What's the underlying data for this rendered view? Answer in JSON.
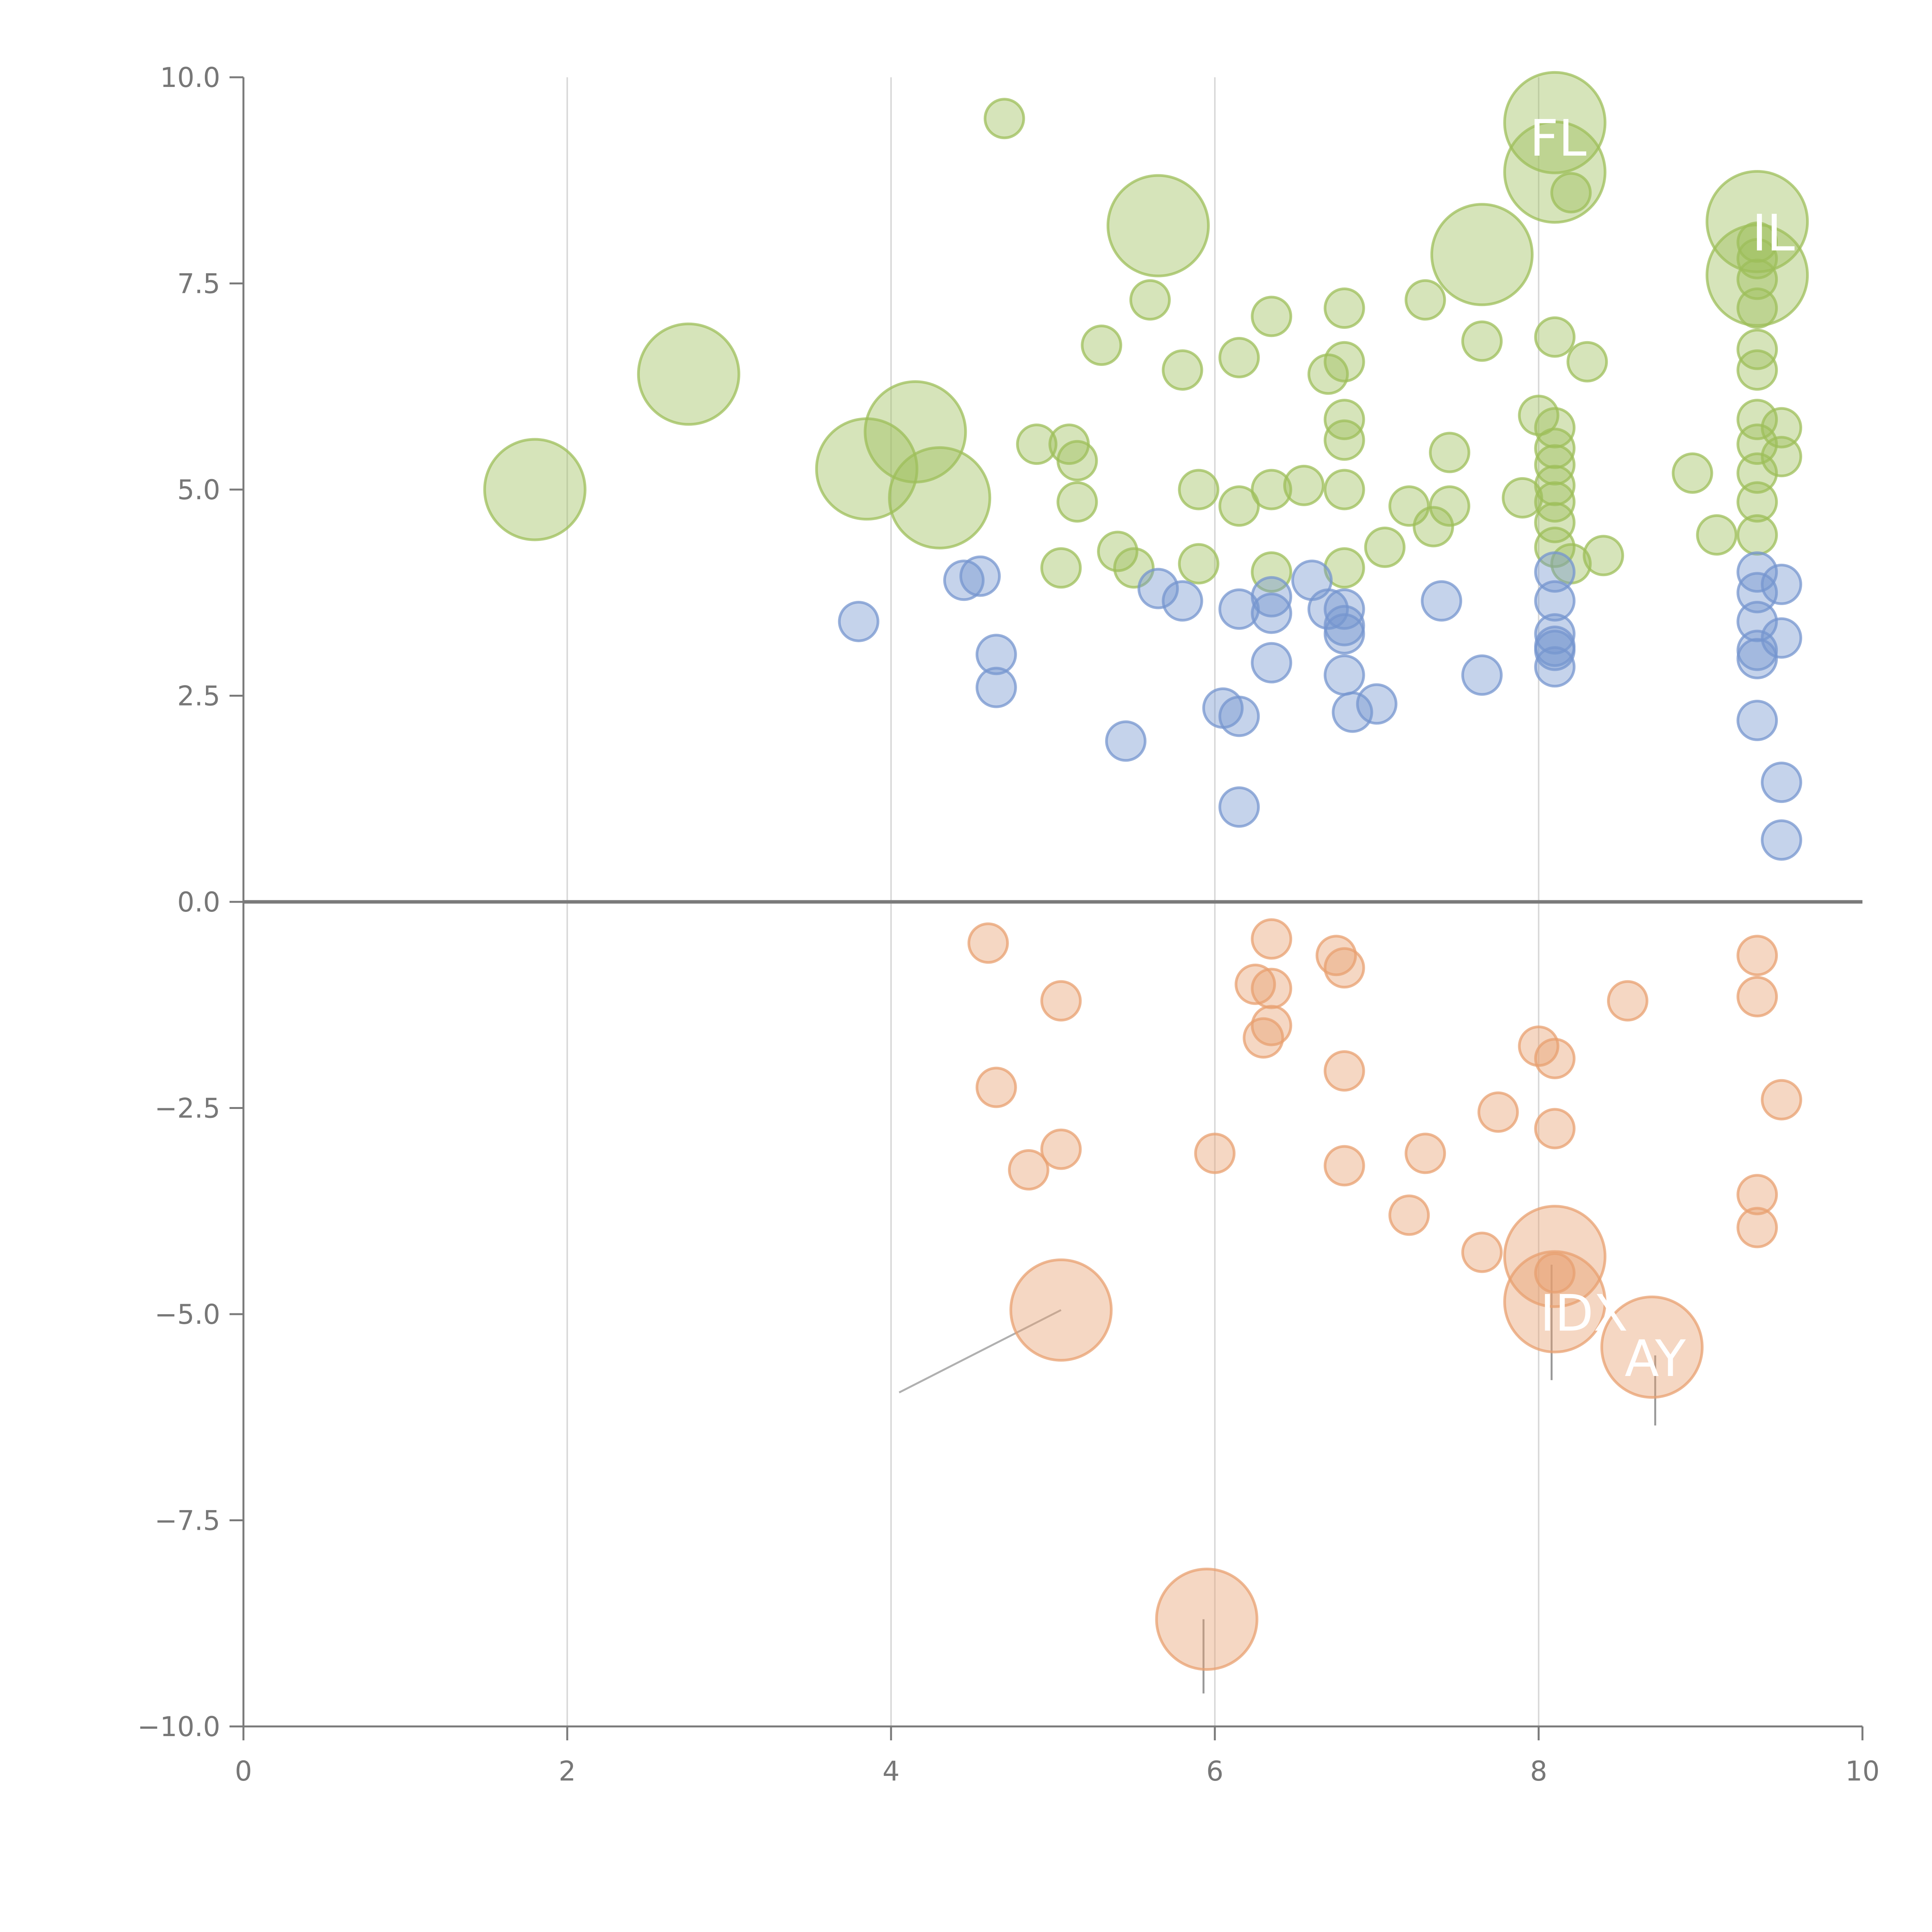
{
  "chart_data": {
    "type": "scatter",
    "title": "",
    "xlabel": "",
    "ylabel": "",
    "xlim": [
      0,
      10
    ],
    "ylim": [
      -10,
      10
    ],
    "x_ticks": [
      "0",
      "2",
      "4",
      "6",
      "8",
      "10"
    ],
    "y_ticks": [
      "10.0",
      "7.5",
      "5.0",
      "2.5",
      "0.0",
      "−2.5",
      "−5.0",
      "−7.5",
      "−10.0"
    ],
    "grid": "vertical",
    "series": [
      {
        "name": "green",
        "color": "#9dbf5a",
        "points": [
          [
            4.7,
            9.5,
            1
          ],
          [
            5.3,
            6.75,
            1
          ],
          [
            5.6,
            7.3,
            1
          ],
          [
            6.15,
            6.6,
            1
          ],
          [
            5.8,
            6.45,
            1
          ],
          [
            6.7,
            6.4,
            1
          ],
          [
            6.8,
            6.55,
            1
          ],
          [
            6.35,
            7.1,
            1
          ],
          [
            6.8,
            7.2,
            1
          ],
          [
            7.3,
            7.3,
            1
          ],
          [
            7.65,
            6.8,
            1
          ],
          [
            8.1,
            6.85,
            1
          ],
          [
            8.3,
            6.55,
            1
          ],
          [
            8.2,
            8.6,
            1
          ],
          [
            4.9,
            5.55,
            1
          ],
          [
            5.1,
            5.55,
            1
          ],
          [
            5.15,
            5.35,
            1
          ],
          [
            5.15,
            4.85,
            1
          ],
          [
            5.05,
            4.05,
            1
          ],
          [
            5.4,
            4.25,
            1
          ],
          [
            5.5,
            4.05,
            1
          ],
          [
            5.9,
            4.1,
            1
          ],
          [
            5.9,
            5.0,
            1
          ],
          [
            6.15,
            4.8,
            1
          ],
          [
            6.35,
            5.0,
            1
          ],
          [
            6.55,
            5.05,
            1
          ],
          [
            6.8,
            5.0,
            1
          ],
          [
            6.8,
            5.6,
            1
          ],
          [
            6.8,
            5.85,
            1
          ],
          [
            6.35,
            4.0,
            1
          ],
          [
            6.8,
            4.05,
            1
          ],
          [
            7.05,
            4.3,
            1
          ],
          [
            7.2,
            4.8,
            1
          ],
          [
            7.35,
            4.55,
            1
          ],
          [
            7.45,
            4.8,
            1
          ],
          [
            7.45,
            5.45,
            1
          ],
          [
            7.9,
            4.9,
            1
          ],
          [
            8.0,
            5.9,
            1
          ],
          [
            8.1,
            5.75,
            1
          ],
          [
            8.1,
            5.5,
            1
          ],
          [
            8.1,
            5.3,
            1
          ],
          [
            8.1,
            5.05,
            1
          ],
          [
            8.1,
            4.85,
            1
          ],
          [
            8.1,
            4.6,
            1
          ],
          [
            8.1,
            4.3,
            1
          ],
          [
            8.2,
            4.1,
            1
          ],
          [
            8.4,
            4.2,
            1
          ],
          [
            8.95,
            5.2,
            1
          ],
          [
            9.1,
            4.45,
            1
          ],
          [
            9.35,
            4.45,
            1
          ],
          [
            9.35,
            4.85,
            1
          ],
          [
            9.35,
            5.2,
            1
          ],
          [
            9.35,
            5.55,
            1
          ],
          [
            9.35,
            5.85,
            1
          ],
          [
            9.35,
            6.45,
            1
          ],
          [
            9.35,
            6.7,
            1
          ],
          [
            9.35,
            7.2,
            1
          ],
          [
            9.35,
            7.55,
            1
          ],
          [
            9.35,
            7.8,
            1
          ],
          [
            9.35,
            8.0,
            1
          ],
          [
            9.5,
            5.75,
            1
          ],
          [
            9.5,
            5.4,
            1
          ],
          [
            1.8,
            5.0,
            2.6
          ],
          [
            2.75,
            6.4,
            2.6
          ],
          [
            3.85,
            5.25,
            2.6
          ],
          [
            4.15,
            5.7,
            2.6
          ],
          [
            4.3,
            4.9,
            2.6
          ],
          [
            5.65,
            8.2,
            2.6
          ],
          [
            7.65,
            7.85,
            2.6
          ],
          [
            8.1,
            9.45,
            2.6
          ],
          [
            8.1,
            8.85,
            2.6
          ],
          [
            9.35,
            8.25,
            2.6
          ],
          [
            9.35,
            7.6,
            2.6
          ]
        ]
      },
      {
        "name": "blue",
        "color": "#7596cf",
        "points": [
          [
            3.8,
            3.4,
            1
          ],
          [
            4.45,
            3.9,
            1
          ],
          [
            4.55,
            3.95,
            1
          ],
          [
            4.65,
            3.0,
            1
          ],
          [
            4.65,
            2.6,
            1
          ],
          [
            5.45,
            1.95,
            1
          ],
          [
            5.65,
            3.8,
            1
          ],
          [
            5.8,
            3.65,
            1
          ],
          [
            6.05,
            2.35,
            1
          ],
          [
            6.15,
            2.25,
            1
          ],
          [
            6.15,
            3.55,
            1
          ],
          [
            6.15,
            1.15,
            1
          ],
          [
            6.35,
            3.7,
            1
          ],
          [
            6.35,
            3.5,
            1
          ],
          [
            6.35,
            2.9,
            1
          ],
          [
            6.6,
            3.9,
            1
          ],
          [
            6.7,
            3.55,
            1
          ],
          [
            6.8,
            3.55,
            1
          ],
          [
            6.8,
            3.35,
            1
          ],
          [
            6.8,
            3.25,
            1
          ],
          [
            6.8,
            2.75,
            1
          ],
          [
            6.85,
            2.3,
            1
          ],
          [
            7.0,
            2.4,
            1
          ],
          [
            7.4,
            3.65,
            1
          ],
          [
            7.65,
            2.75,
            1
          ],
          [
            8.1,
            4.0,
            1
          ],
          [
            8.1,
            3.65,
            1
          ],
          [
            8.1,
            3.25,
            1
          ],
          [
            8.1,
            3.1,
            1
          ],
          [
            8.1,
            3.05,
            1
          ],
          [
            8.1,
            2.85,
            1
          ],
          [
            9.35,
            4.0,
            1
          ],
          [
            9.35,
            3.75,
            1
          ],
          [
            9.35,
            3.4,
            1
          ],
          [
            9.35,
            3.05,
            1
          ],
          [
            9.35,
            2.95,
            1
          ],
          [
            9.35,
            2.2,
            1
          ],
          [
            9.5,
            3.85,
            1
          ],
          [
            9.5,
            3.2,
            1
          ],
          [
            9.5,
            1.45,
            1
          ],
          [
            9.5,
            0.75,
            1
          ]
        ]
      },
      {
        "name": "orange",
        "color": "#e8a070",
        "points": [
          [
            4.6,
            -0.5,
            1
          ],
          [
            5.05,
            -1.2,
            1
          ],
          [
            4.65,
            -2.25,
            1
          ],
          [
            4.85,
            -3.25,
            1
          ],
          [
            5.05,
            -3.0,
            1
          ],
          [
            6.0,
            -3.05,
            1
          ],
          [
            6.25,
            -1.0,
            1
          ],
          [
            6.35,
            -0.45,
            1
          ],
          [
            6.35,
            -1.05,
            1
          ],
          [
            6.35,
            -1.5,
            1
          ],
          [
            6.3,
            -1.65,
            1
          ],
          [
            6.75,
            -0.65,
            1
          ],
          [
            6.8,
            -0.8,
            1
          ],
          [
            6.8,
            -2.05,
            1
          ],
          [
            6.8,
            -3.2,
            1
          ],
          [
            7.2,
            -3.8,
            1
          ],
          [
            7.3,
            -3.05,
            1
          ],
          [
            7.65,
            -4.25,
            1
          ],
          [
            7.75,
            -2.55,
            1
          ],
          [
            8.0,
            -1.75,
            1
          ],
          [
            8.1,
            -1.9,
            1
          ],
          [
            8.1,
            -2.75,
            1
          ],
          [
            8.1,
            -4.5,
            1
          ],
          [
            8.55,
            -1.2,
            1
          ],
          [
            9.35,
            -0.65,
            1
          ],
          [
            9.35,
            -1.15,
            1
          ],
          [
            9.35,
            -3.55,
            1
          ],
          [
            9.35,
            -3.95,
            1
          ],
          [
            9.5,
            -2.4,
            1
          ],
          [
            5.05,
            -4.95,
            2.6
          ],
          [
            5.95,
            -8.7,
            2.6
          ],
          [
            8.1,
            -4.3,
            2.6
          ],
          [
            8.1,
            -4.85,
            2.6
          ],
          [
            8.7,
            -5.4,
            2.6
          ]
        ]
      }
    ],
    "labels": [
      "FL",
      "IL",
      "IDX",
      "AY"
    ]
  }
}
